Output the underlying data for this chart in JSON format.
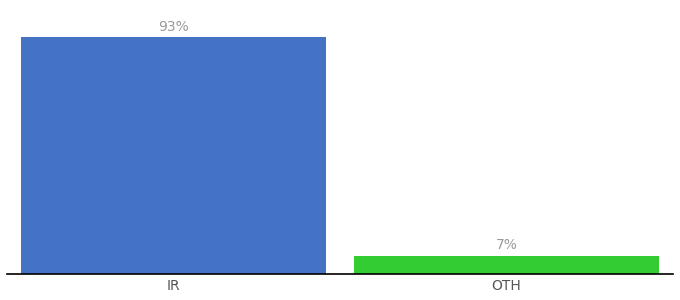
{
  "categories": [
    "IR",
    "OTH"
  ],
  "values": [
    93,
    7
  ],
  "bar_colors": [
    "#4472c4",
    "#33cc33"
  ],
  "labels": [
    "93%",
    "7%"
  ],
  "background_color": "#ffffff",
  "ylim": [
    0,
    105
  ],
  "bar_width": 0.55,
  "label_fontsize": 10,
  "tick_fontsize": 10,
  "tick_color": "#555555",
  "label_color": "#999999",
  "x_positions": [
    0.3,
    0.9
  ],
  "xlim": [
    0.0,
    1.2
  ]
}
